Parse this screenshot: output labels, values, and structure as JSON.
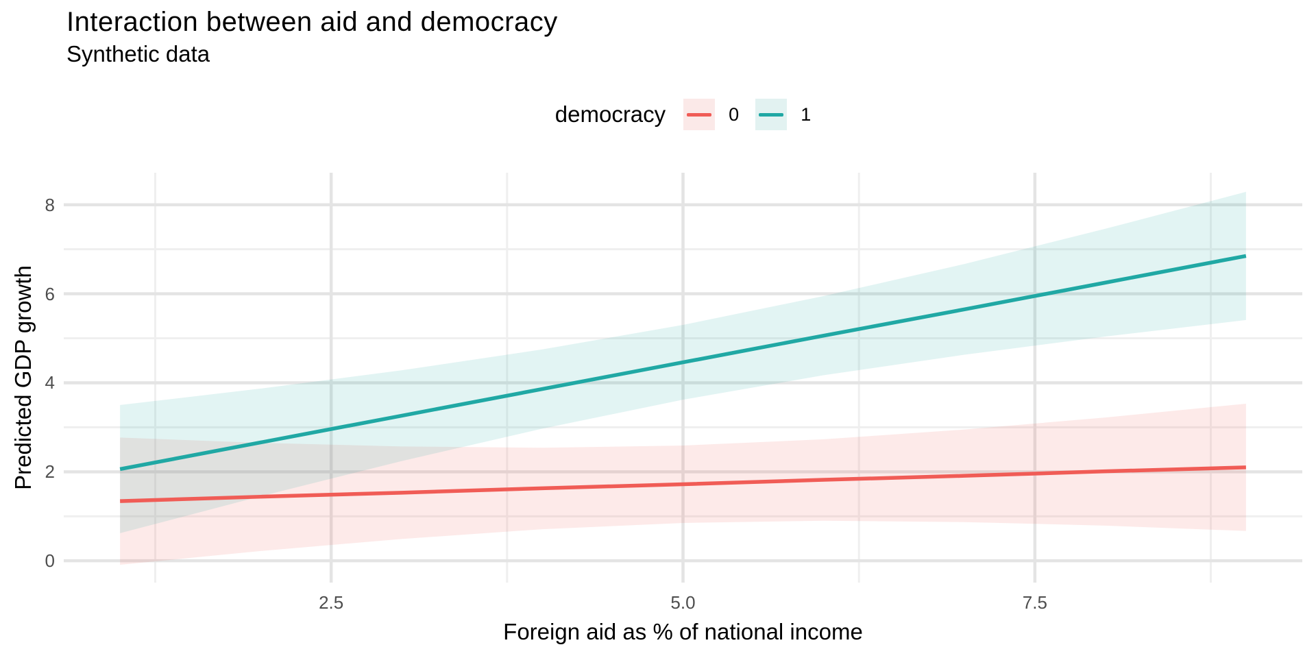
{
  "header": {
    "title": "Interaction between aid and democracy",
    "subtitle": "Synthetic data"
  },
  "legend": {
    "title": "democracy",
    "entries": [
      {
        "label": "0",
        "line_color": "#F05C56",
        "fill_color": "#FBE9E8"
      },
      {
        "label": "1",
        "line_color": "#20A8A4",
        "fill_color": "#E2F2F1"
      }
    ]
  },
  "axes": {
    "x_title": "Foreign aid as % of national income",
    "y_title": "Predicted GDP growth",
    "x_tick_labels": [
      "2.5",
      "5.0",
      "7.5"
    ],
    "y_tick_labels": [
      "0",
      "2",
      "4",
      "6",
      "8"
    ]
  },
  "chart_data": {
    "type": "line",
    "title": "Interaction between aid and democracy",
    "subtitle": "Synthetic data",
    "xlabel": "Foreign aid as % of national income",
    "ylabel": "Predicted GDP growth",
    "legend_title": "democracy",
    "legend_position": "top",
    "grid": true,
    "x": [
      1,
      2,
      3,
      4,
      5,
      6,
      7,
      8,
      9
    ],
    "series": [
      {
        "name": "0",
        "color": "#F05C56",
        "ribbon_opacity": 0.13,
        "values": [
          1.34,
          1.44,
          1.53,
          1.63,
          1.72,
          1.82,
          1.91,
          2.01,
          2.1
        ],
        "ci_upper": [
          2.77,
          2.65,
          2.57,
          2.54,
          2.59,
          2.73,
          2.95,
          3.22,
          3.53
        ],
        "ci_lower": [
          -0.09,
          0.22,
          0.49,
          0.71,
          0.85,
          0.9,
          0.87,
          0.79,
          0.67
        ]
      },
      {
        "name": "1",
        "color": "#20A8A4",
        "ribbon_opacity": 0.13,
        "values": [
          2.06,
          2.66,
          3.26,
          3.86,
          4.46,
          5.06,
          5.65,
          6.25,
          6.85
        ],
        "ci_upper": [
          3.5,
          3.87,
          4.28,
          4.75,
          5.3,
          5.95,
          6.67,
          7.46,
          8.29
        ],
        "ci_lower": [
          0.62,
          1.45,
          2.24,
          2.97,
          3.62,
          4.17,
          4.63,
          5.04,
          5.41
        ]
      }
    ],
    "x_ticks": [
      2.5,
      5.0,
      7.5
    ],
    "y_ticks": [
      0,
      2,
      4,
      6,
      8
    ],
    "x_minor_ticks": [
      1.25,
      3.75,
      6.25,
      8.75
    ],
    "y_minor_ticks": [
      1,
      3,
      5,
      7
    ],
    "xlim": [
      0.6,
      9.4
    ],
    "ylim": [
      -0.49,
      8.72
    ],
    "grid_major_color": "#E4E4E4",
    "grid_minor_color": "#EFEFEF",
    "background": "#FFFFFF"
  }
}
